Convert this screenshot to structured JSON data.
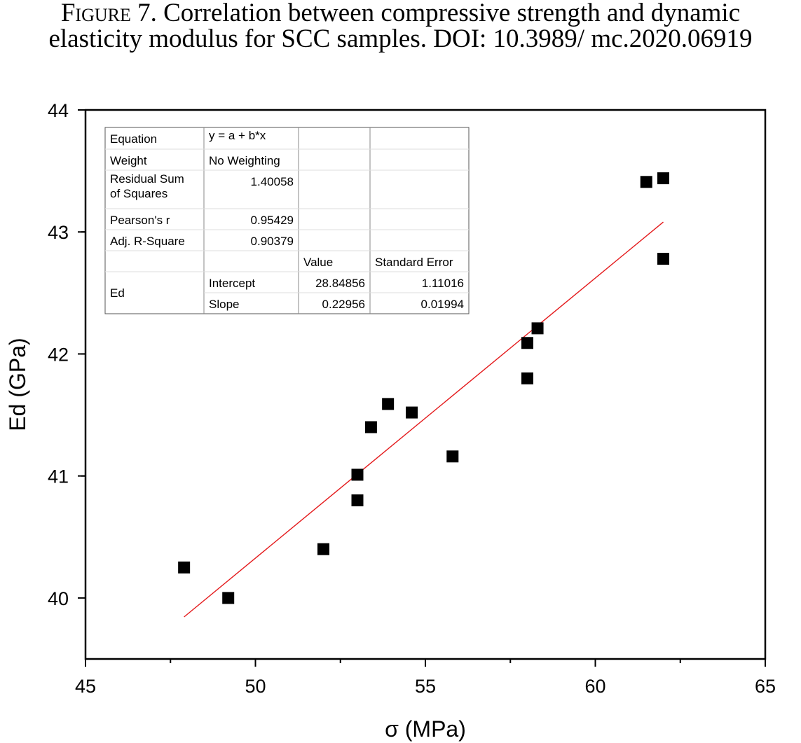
{
  "caption": {
    "label": "Figure 7.",
    "text": "Correlation between compressive strength and dynamic elasticity modulus for SCC samples. DOI: 10.3989/ mc.2020.06919"
  },
  "chart_data": {
    "type": "scatter",
    "xlabel": "σ (MPa)",
    "ylabel": "Ed (GPa)",
    "xlim": [
      45,
      65
    ],
    "ylim": [
      39.5,
      44
    ],
    "x_ticks": [
      45,
      50,
      55,
      60,
      65
    ],
    "y_ticks": [
      40,
      41,
      42,
      43,
      44
    ],
    "grid": false,
    "points": [
      {
        "x": 47.9,
        "y": 40.25
      },
      {
        "x": 49.2,
        "y": 40.0
      },
      {
        "x": 52.0,
        "y": 40.4
      },
      {
        "x": 53.0,
        "y": 40.8
      },
      {
        "x": 53.0,
        "y": 41.01
      },
      {
        "x": 53.4,
        "y": 41.4
      },
      {
        "x": 53.9,
        "y": 41.59
      },
      {
        "x": 54.6,
        "y": 41.52
      },
      {
        "x": 55.8,
        "y": 41.16
      },
      {
        "x": 58.0,
        "y": 41.8
      },
      {
        "x": 58.0,
        "y": 42.09
      },
      {
        "x": 58.3,
        "y": 42.21
      },
      {
        "x": 61.5,
        "y": 43.41
      },
      {
        "x": 62.0,
        "y": 43.44
      },
      {
        "x": 62.0,
        "y": 42.78
      }
    ],
    "fit": {
      "intercept": 28.84856,
      "slope": 0.22956,
      "x_range": [
        47.9,
        62.0
      ],
      "color": "#e41a1c"
    },
    "marker_color": "#000000",
    "stats_table": {
      "rows": [
        [
          "Equation",
          "y = a + b*x",
          "",
          ""
        ],
        [
          "Weight",
          "No Weighting",
          "",
          ""
        ],
        [
          "Residual Sum\nof Squares",
          "1.40058",
          "",
          ""
        ],
        [
          "Pearson's r",
          "0.95429",
          "",
          ""
        ],
        [
          "Adj. R-Square",
          "0.90379",
          "",
          ""
        ],
        [
          "",
          "",
          "Value",
          "Standard Error"
        ],
        [
          "Ed",
          "Intercept",
          "28.84856",
          "1.11016"
        ],
        [
          "",
          "Slope",
          "0.22956",
          "0.01994"
        ]
      ]
    }
  }
}
